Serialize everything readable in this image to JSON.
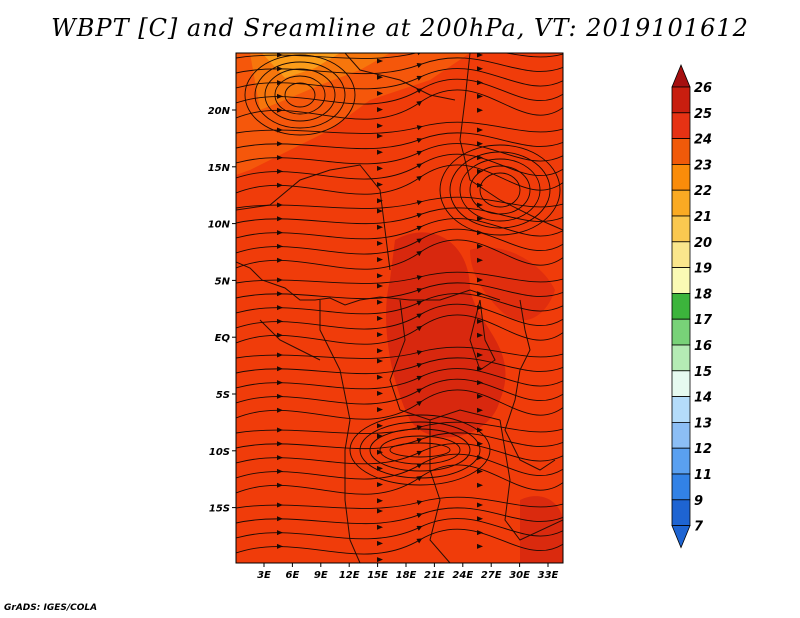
{
  "title": "WBPT [C] and Sreamline at 200hPa, VT: 2019101612",
  "footer": "GrADS: IGES/COLA",
  "map": {
    "lon_labels": [
      "3E",
      "6E",
      "9E",
      "12E",
      "15E",
      "18E",
      "21E",
      "24E",
      "27E",
      "30E",
      "33E"
    ],
    "lat_labels": [
      "20N",
      "15N",
      "10N",
      "5N",
      "EQ",
      "5S",
      "10S",
      "15S"
    ],
    "field_colors": {
      "base": "#f03c0a",
      "warm": "#d4250f",
      "cool": "#f77a0c",
      "cooler": "#fba21c",
      "line": "#1a0a05"
    }
  },
  "colorbar": {
    "labels": [
      "26",
      "25",
      "24",
      "23",
      "22",
      "21",
      "20",
      "19",
      "18",
      "17",
      "16",
      "15",
      "14",
      "13",
      "12",
      "11",
      "9",
      "7"
    ],
    "colors": [
      "#a50f0f",
      "#c81e0f",
      "#e63214",
      "#f05a0a",
      "#fa8c0a",
      "#faaa23",
      "#fac850",
      "#fae68c",
      "#fafab4",
      "#3cb43c",
      "#78d278",
      "#b4ebb4",
      "#e6faf0",
      "#b4dcfa",
      "#8cbef5",
      "#5aa0f0",
      "#3282e6",
      "#1e64d2"
    ]
  }
}
